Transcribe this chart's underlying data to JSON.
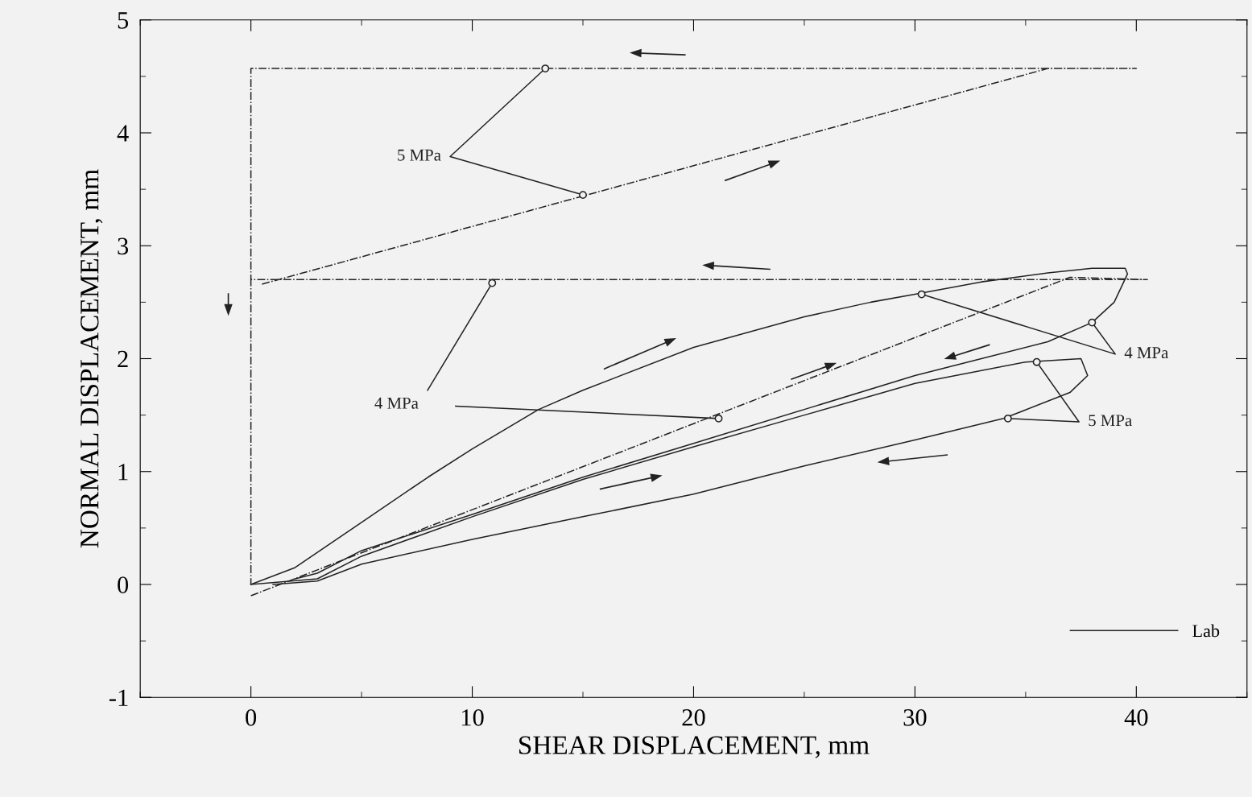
{
  "chart_data": {
    "type": "line",
    "xlabel": "SHEAR DISPLACEMENT, mm",
    "ylabel": "NORMAL DISPLACEMENT, mm",
    "xlim": [
      -5,
      45
    ],
    "ylim": [
      -1,
      5
    ],
    "xticks": [
      0,
      10,
      20,
      30,
      40
    ],
    "yticks": [
      -1,
      0,
      1,
      2,
      3,
      4,
      5
    ],
    "grid": false,
    "legend": "bottom right",
    "series": [
      {
        "name": "Lab",
        "color": "#222222",
        "line_style": "solid",
        "x": [
          0,
          2,
          5,
          8,
          10,
          13,
          15,
          20,
          25,
          28,
          30,
          33,
          36,
          38,
          39.5,
          39.6,
          39,
          38,
          36,
          33,
          30,
          25,
          20,
          15,
          10,
          5,
          3,
          2
        ],
        "values": [
          0,
          0.15,
          0.55,
          0.95,
          1.2,
          1.55,
          1.72,
          2.1,
          2.37,
          2.5,
          2.57,
          2.68,
          2.76,
          2.8,
          2.8,
          2.75,
          2.5,
          2.32,
          2.15,
          2.0,
          1.85,
          1.55,
          1.25,
          0.95,
          0.62,
          0.3,
          0.1,
          0.05
        ]
      },
      {
        "color": "#222222",
        "line_style": "solid",
        "x": [
          0,
          3,
          5,
          10,
          15,
          20,
          25,
          30,
          35,
          37.5,
          37.8,
          37,
          34,
          30,
          25,
          20,
          15,
          10,
          5,
          3,
          1
        ],
        "values": [
          0,
          0.05,
          0.25,
          0.6,
          0.93,
          1.22,
          1.5,
          1.78,
          1.97,
          2.0,
          1.85,
          1.7,
          1.47,
          1.28,
          1.05,
          0.8,
          0.6,
          0.4,
          0.18,
          0.03,
          0
        ]
      },
      {
        "color": "#222222",
        "line_style": "dashdot",
        "x": [
          0,
          37,
          40.5,
          0,
          0
        ],
        "values": [
          -0.1,
          2.72,
          2.7,
          2.7,
          0
        ]
      },
      {
        "color": "#222222",
        "line_style": "dashdot",
        "x": [
          0.5,
          36,
          40,
          0,
          0
        ],
        "values": [
          2.66,
          4.57,
          4.57,
          4.57,
          2.7
        ]
      },
      {
        "color": "#222222",
        "line_style": "solid",
        "x": [
          13.3,
          9.0,
          15
        ],
        "values": [
          4.57,
          3.79,
          3.45
        ]
      },
      {
        "color": "#222222",
        "line_style": "solid",
        "x": [
          10.9,
          7.98,
          null,
          9.25,
          21.13
        ],
        "values": [
          2.67,
          1.72,
          null,
          1.58,
          1.47
        ]
      },
      {
        "color": "#222222",
        "line_style": "solid",
        "x": [
          30.3,
          39.05,
          38.0
        ],
        "values": [
          2.57,
          2.04,
          2.32
        ]
      },
      {
        "color": "#222222",
        "line_style": "solid",
        "x": [
          35.5,
          37.41,
          34.2
        ],
        "values": [
          1.97,
          1.44,
          1.47
        ]
      },
      {
        "type": "scatter",
        "color": "#222222",
        "marker": "circle",
        "x": [
          13.3,
          15,
          10.9,
          21.13,
          30.3,
          38.0,
          35.5,
          34.2
        ],
        "values": [
          4.57,
          3.45,
          2.67,
          1.47,
          2.57,
          2.32,
          1.97,
          1.47
        ]
      }
    ],
    "annotations": [
      "5 MPa",
      "4 MPa",
      "4 MPa",
      "5 MPa"
    ]
  }
}
